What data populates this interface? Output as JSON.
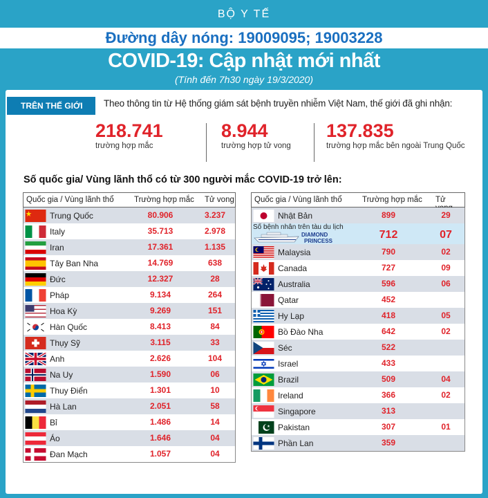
{
  "header": {
    "ministry": "BỘ Y TẾ",
    "hotline": "Đường dây nóng: 19009095; 19003228",
    "title": "COVID-19: Cập nhật mới nhất",
    "subtitle": "(Tính đến 7h30 ngày 19/3/2020)"
  },
  "world": {
    "tag": "TRÊN THẾ GIỚI",
    "intro": "Theo thông tin từ Hệ thống giám sát bệnh truyền nhiễm Việt Nam, thế giới đã ghi nhận:",
    "stats": [
      {
        "value": "218.741",
        "label": "trường hợp mắc"
      },
      {
        "value": "8.944",
        "label": "trường hợp tử vong"
      },
      {
        "value": "137.835",
        "label": "trường hợp  mắc bên ngoài Trung Quốc"
      }
    ]
  },
  "section_title": "Số quốc gia/ Vùng lãnh thổ có từ 300 người  mắc COVID-19 trở lên:",
  "columns": {
    "country": "Quốc gia / Vùng lãnh thổ",
    "cases": "Trường hợp mắc",
    "deaths": "Tử vong"
  },
  "left_table": [
    {
      "flag": "china-flag",
      "name": "Trung Quốc",
      "cases": "80.906",
      "deaths": "3.237"
    },
    {
      "flag": "italy-flag",
      "name": "Italy",
      "cases": "35.713",
      "deaths": "2.978"
    },
    {
      "flag": "iran-flag",
      "name": "Iran",
      "cases": "17.361",
      "deaths": "1.135"
    },
    {
      "flag": "spain-flag",
      "name": "Tây Ban Nha",
      "cases": "14.769",
      "deaths": "638"
    },
    {
      "flag": "germany-flag",
      "name": "Đức",
      "cases": "12.327",
      "deaths": "28"
    },
    {
      "flag": "france-flag",
      "name": "Pháp",
      "cases": "9.134",
      "deaths": "264"
    },
    {
      "flag": "usa-flag",
      "name": "Hoa Kỳ",
      "cases": "9.269",
      "deaths": "151"
    },
    {
      "flag": "south-korea-flag",
      "name": "Hàn Quốc",
      "cases": "8.413",
      "deaths": "84"
    },
    {
      "flag": "switzerland-flag",
      "name": "Thụy Sỹ",
      "cases": "3.115",
      "deaths": "33"
    },
    {
      "flag": "uk-flag",
      "name": "Anh",
      "cases": "2.626",
      "deaths": "104"
    },
    {
      "flag": "norway-flag",
      "name": "Na Uy",
      "cases": "1.590",
      "deaths": "06"
    },
    {
      "flag": "sweden-flag",
      "name": "Thuy Điển",
      "cases": "1.301",
      "deaths": "10"
    },
    {
      "flag": "netherlands-flag",
      "name": "Hà Lan",
      "cases": "2.051",
      "deaths": "58"
    },
    {
      "flag": "belgium-flag",
      "name": "Bỉ",
      "cases": "1.486",
      "deaths": "14"
    },
    {
      "flag": "austria-flag",
      "name": "Áo",
      "cases": "1.646",
      "deaths": "04"
    },
    {
      "flag": "denmark-flag",
      "name": "Đan Mạch",
      "cases": "1.057",
      "deaths": "04"
    }
  ],
  "right_table": [
    {
      "flag": "japan-flag",
      "name": "Nhật Bản",
      "cases": "899",
      "deaths": "29"
    },
    {
      "flag": "ship-icon",
      "name": "Số bệnh nhân trên tàu du lịch",
      "ship_name_1": "DIAMOND",
      "ship_name_2": "PRINCESS",
      "cases": "712",
      "deaths": "07"
    },
    {
      "flag": "malaysia-flag",
      "name": "Malaysia",
      "cases": "790",
      "deaths": "02"
    },
    {
      "flag": "canada-flag",
      "name": "Canada",
      "cases": "727",
      "deaths": "09"
    },
    {
      "flag": "australia-flag",
      "name": "Australia",
      "cases": "596",
      "deaths": "06"
    },
    {
      "flag": "qatar-flag",
      "name": "Qatar",
      "cases": "452",
      "deaths": ""
    },
    {
      "flag": "greece-flag",
      "name": "Hy Lạp",
      "cases": "418",
      "deaths": "05"
    },
    {
      "flag": "portugal-flag",
      "name": "Bồ Đào Nha",
      "cases": "642",
      "deaths": "02"
    },
    {
      "flag": "czech-flag",
      "name": "Séc",
      "cases": "522",
      "deaths": ""
    },
    {
      "flag": "israel-flag",
      "name": "Israel",
      "cases": "433",
      "deaths": ""
    },
    {
      "flag": "brazil-flag",
      "name": "Brazil",
      "cases": "509",
      "deaths": "04"
    },
    {
      "flag": "ireland-flag",
      "name": "Ireland",
      "cases": "366",
      "deaths": "02"
    },
    {
      "flag": "singapore-flag",
      "name": "Singapore",
      "cases": "313",
      "deaths": ""
    },
    {
      "flag": "pakistan-flag",
      "name": "Pakistan",
      "cases": "307",
      "deaths": "01"
    },
    {
      "flag": "finland-flag",
      "name": "Phần Lan",
      "cases": "359",
      "deaths": ""
    }
  ],
  "colors": {
    "background": "#2aa3c7",
    "accent_red": "#e0232a",
    "tag_blue": "#0e7db3",
    "hotline_blue": "#1a6fc0",
    "row_alt": "#d9dee6"
  }
}
